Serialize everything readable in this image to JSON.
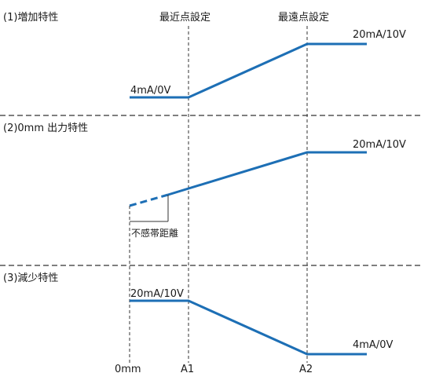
{
  "headers": {
    "nearest": "最近点設定",
    "farthest": "最遠点設定"
  },
  "sections": [
    {
      "title": "(1)増加特性",
      "low_label": "4mA/0V",
      "high_label": "20mA/10V"
    },
    {
      "title": "(2)0mm 出力特性",
      "high_label": "20mA/10V",
      "annotation": "不感帯距離"
    },
    {
      "title": "(3)減少特性",
      "high_label": "20mA/10V",
      "low_label": "4mA/0V"
    }
  ],
  "axis": {
    "ticks": [
      "0mm",
      "A1",
      "A2"
    ]
  },
  "colors": {
    "signal_line": "#1d6fb5",
    "guide_line": "#333333",
    "text": "#1a1a1a"
  }
}
